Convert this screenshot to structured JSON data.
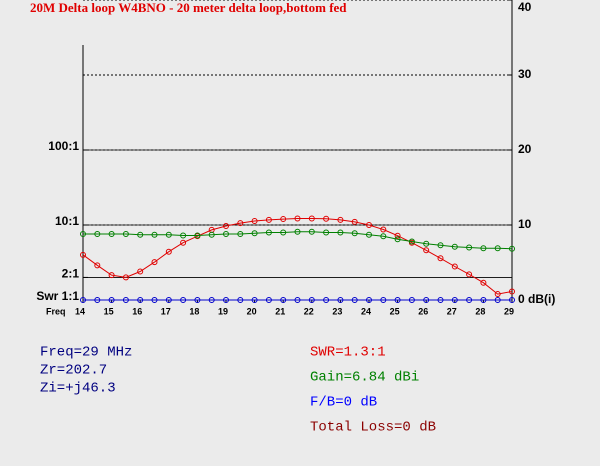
{
  "chart_data": {
    "type": "line",
    "title": "20M Delta loop W4BNO - 20 meter delta loop,bottom fed",
    "xlabel": "Freq",
    "x": [
      14,
      14.5,
      15,
      15.5,
      16,
      16.5,
      17,
      17.5,
      18,
      18.5,
      19,
      19.5,
      20,
      20.5,
      21,
      21.5,
      22,
      22.5,
      23,
      23.5,
      24,
      24.5,
      25,
      25.5,
      26,
      26.5,
      27,
      27.5,
      28,
      28.5,
      29
    ],
    "xlim": [
      14,
      29
    ],
    "xticks": [
      14,
      15,
      16,
      17,
      18,
      19,
      20,
      21,
      22,
      23,
      24,
      25,
      26,
      27,
      28,
      29
    ],
    "ylim": [
      1,
      10000
    ],
    "ylog": true,
    "yticks": [
      {
        "value": 1,
        "label": "Swr 1:1"
      },
      {
        "value": 2,
        "label": "2:1"
      },
      {
        "value": 10,
        "label": "10:1"
      },
      {
        "value": 100,
        "label": "100:1"
      }
    ],
    "y2lim": [
      0,
      40
    ],
    "y2ticks": [
      {
        "value": 0,
        "label": "0 dB(i)"
      },
      10,
      20,
      30,
      40
    ],
    "grid": true,
    "series": [
      {
        "name": "SWR",
        "color": "#e00000",
        "values": [
          4.0,
          2.9,
          2.15,
          2.0,
          2.4,
          3.2,
          4.4,
          5.8,
          7.1,
          8.6,
          9.7,
          10.6,
          11.3,
          11.7,
          12,
          12.2,
          12.2,
          12.1,
          11.7,
          11,
          10,
          8.7,
          7.2,
          5.8,
          4.6,
          3.6,
          2.8,
          2.2,
          1.7,
          1.2,
          1.3
        ]
      },
      {
        "name": "Gain",
        "color": "#008000",
        "axis": "y2",
        "values": [
          8.8,
          8.8,
          8.8,
          8.8,
          8.7,
          8.7,
          8.7,
          8.6,
          8.6,
          8.7,
          8.8,
          8.8,
          8.9,
          9.0,
          9.0,
          9.1,
          9.1,
          9.0,
          9.0,
          8.9,
          8.7,
          8.5,
          8.1,
          7.8,
          7.5,
          7.3,
          7.1,
          7.0,
          6.9,
          6.9,
          6.84
        ]
      },
      {
        "name": "F/B",
        "color": "#0000cc",
        "axis": "y2",
        "values": [
          0,
          0,
          0,
          0,
          0,
          0,
          0,
          0,
          0,
          0,
          0,
          0,
          0,
          0,
          0,
          0,
          0,
          0,
          0,
          0,
          0,
          0,
          0,
          0,
          0,
          0,
          0,
          0,
          0,
          0,
          0
        ]
      }
    ],
    "readouts_left": [
      {
        "text": "Freq=29 MHz",
        "color": "#000080"
      },
      {
        "text": "Zr=202.7",
        "color": "#000080"
      },
      {
        "text": "Zi=+j46.3",
        "color": "#000080"
      }
    ],
    "readouts_right": [
      {
        "text": "SWR=1.3:1",
        "color": "#e00000"
      },
      {
        "text": "Gain=6.84 dBi",
        "color": "#008000"
      },
      {
        "text": "F/B=0 dB",
        "color": "#0000ff"
      },
      {
        "text": "Total Loss=0 dB",
        "color": "#8b0000"
      }
    ]
  }
}
